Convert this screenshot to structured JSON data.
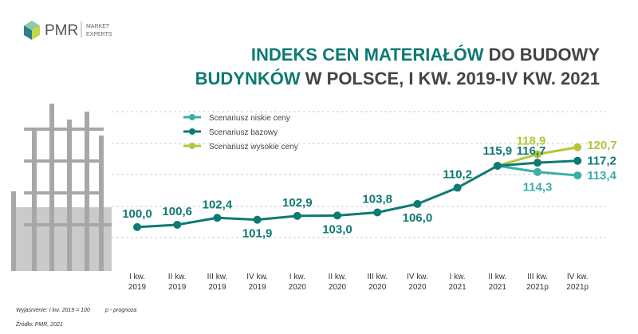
{
  "logo": {
    "name": "PMR",
    "tagline": [
      "MARKET",
      "EXPERTS"
    ]
  },
  "chart_data": {
    "type": "line",
    "title": [
      "INDEKS CEN MATERIAŁÓW",
      "DO BUDOWY",
      "BUDYNKÓW",
      "W POLSCE, I KW. 2019-IV KW. 2021"
    ],
    "categories": [
      "I kw. 2019",
      "II kw. 2019",
      "III kw. 2019",
      "IV kw. 2019",
      "I kw. 2020",
      "II kw. 2020",
      "III kw. 2020",
      "IV kw. 2020",
      "I kw. 2021",
      "II kw. 2021",
      "III kw. 2021p",
      "IV kw. 2021p"
    ],
    "ylim": [
      88.6,
      137.4
    ],
    "series": [
      {
        "name": "Scenariusz niskie ceny",
        "color": "#3aaeaa",
        "values": [
          null,
          null,
          null,
          null,
          null,
          null,
          null,
          null,
          null,
          115.9,
          114.3,
          113.4
        ],
        "value_labels": [
          null,
          null,
          null,
          null,
          null,
          null,
          null,
          null,
          null,
          null,
          "114,3",
          "113,4"
        ]
      },
      {
        "name": "Scenariusz bazowy",
        "color": "#0e7a72",
        "values": [
          100.0,
          100.6,
          102.4,
          101.9,
          102.9,
          103.0,
          103.8,
          106.0,
          110.2,
          115.9,
          116.7,
          117.2
        ],
        "value_labels": [
          "100,0",
          "100,6",
          "102,4",
          "101,9",
          "102,9",
          "103,0",
          "103,8",
          "106,0",
          "110,2",
          "115,9",
          "116,7",
          "117,2"
        ]
      },
      {
        "name": "Scenariusz wysokie ceny",
        "color": "#b5c63a",
        "values": [
          null,
          null,
          null,
          null,
          null,
          null,
          null,
          null,
          null,
          115.9,
          118.9,
          120.7
        ],
        "value_labels": [
          null,
          null,
          null,
          null,
          null,
          null,
          null,
          null,
          null,
          null,
          "118,9",
          "120,7"
        ]
      }
    ],
    "notes": [
      "Wyjaśnienie: I kw. 2019 = 100",
      "p - prognoza",
      "Źródło: PMR, 2021"
    ]
  }
}
